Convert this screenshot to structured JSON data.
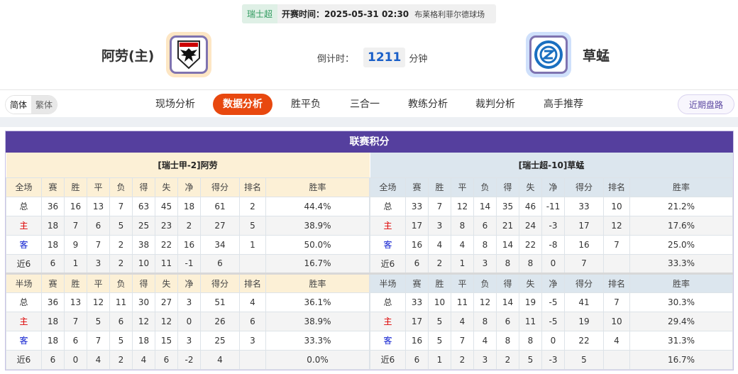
{
  "match": {
    "league": "瑞士超",
    "kickoff": "开赛时间：2025-05-31 02:30",
    "venue": "布莱格利菲尔德球场",
    "home": "阿劳(主)",
    "away": "草蜢",
    "countdown_label": "倒计时：",
    "countdown_value": "1211",
    "countdown_unit": "分钟"
  },
  "lang": {
    "simplified": "简体",
    "traditional": "繁体"
  },
  "nav": {
    "items": [
      "现场分析",
      "数据分析",
      "胜平负",
      "三合一",
      "教练分析",
      "裁判分析",
      "高手推荐"
    ],
    "active": "数据分析",
    "recent": "近期盘路"
  },
  "colors": {
    "accent": "#e8480f",
    "title_bg": "#553f9e",
    "home_header": "#fcf0d6",
    "away_header": "#dce6ee"
  },
  "standings": {
    "title": "联赛积分",
    "columns": [
      "赛",
      "胜",
      "平",
      "负",
      "得",
      "失",
      "净",
      "得分",
      "排名",
      "胜率"
    ],
    "home": {
      "label": "[瑞士甲-2]阿劳",
      "full": {
        "header": "全场",
        "rows": [
          [
            "总",
            "36",
            "16",
            "13",
            "7",
            "63",
            "45",
            "18",
            "61",
            "2",
            "44.4%"
          ],
          [
            "主",
            "18",
            "7",
            "6",
            "5",
            "25",
            "23",
            "2",
            "27",
            "5",
            "38.9%"
          ],
          [
            "客",
            "18",
            "9",
            "7",
            "2",
            "38",
            "22",
            "16",
            "34",
            "1",
            "50.0%"
          ],
          [
            "近6",
            "6",
            "1",
            "3",
            "2",
            "10",
            "11",
            "-1",
            "6",
            "",
            "16.7%"
          ]
        ]
      },
      "half": {
        "header": "半场",
        "rows": [
          [
            "总",
            "36",
            "13",
            "12",
            "11",
            "30",
            "27",
            "3",
            "51",
            "4",
            "36.1%"
          ],
          [
            "主",
            "18",
            "7",
            "5",
            "6",
            "12",
            "12",
            "0",
            "26",
            "6",
            "38.9%"
          ],
          [
            "客",
            "18",
            "6",
            "7",
            "5",
            "18",
            "15",
            "3",
            "25",
            "3",
            "33.3%"
          ],
          [
            "近6",
            "6",
            "0",
            "4",
            "2",
            "4",
            "6",
            "-2",
            "4",
            "",
            "0.0%"
          ]
        ]
      }
    },
    "away": {
      "label": "[瑞士超-10]草蜢",
      "full": {
        "header": "全场",
        "rows": [
          [
            "总",
            "33",
            "7",
            "12",
            "14",
            "35",
            "46",
            "-11",
            "33",
            "10",
            "21.2%"
          ],
          [
            "主",
            "17",
            "3",
            "8",
            "6",
            "21",
            "24",
            "-3",
            "17",
            "12",
            "17.6%"
          ],
          [
            "客",
            "16",
            "4",
            "4",
            "8",
            "14",
            "22",
            "-8",
            "16",
            "7",
            "25.0%"
          ],
          [
            "近6",
            "6",
            "2",
            "1",
            "3",
            "8",
            "8",
            "0",
            "7",
            "",
            "33.3%"
          ]
        ]
      },
      "half": {
        "header": "半场",
        "rows": [
          [
            "总",
            "33",
            "10",
            "11",
            "12",
            "14",
            "19",
            "-5",
            "41",
            "7",
            "30.3%"
          ],
          [
            "主",
            "17",
            "5",
            "4",
            "8",
            "6",
            "11",
            "-5",
            "19",
            "10",
            "29.4%"
          ],
          [
            "客",
            "16",
            "5",
            "7",
            "4",
            "8",
            "8",
            "0",
            "22",
            "4",
            "31.3%"
          ],
          [
            "近6",
            "6",
            "1",
            "2",
            "3",
            "2",
            "5",
            "-3",
            "5",
            "",
            "16.7%"
          ]
        ]
      }
    }
  }
}
